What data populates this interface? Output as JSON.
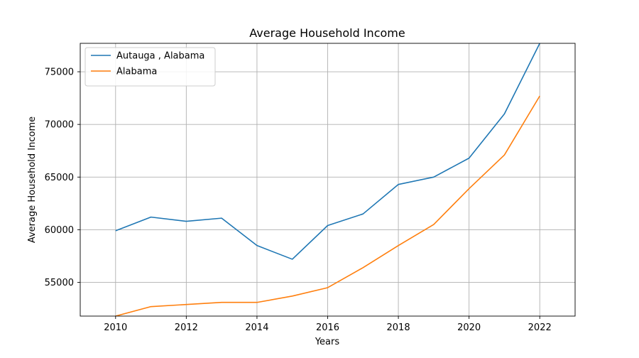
{
  "chart_data": {
    "type": "line",
    "title": "Average Household Income",
    "xlabel": "Years",
    "ylabel": "Average Household Income",
    "x": [
      2010,
      2011,
      2012,
      2013,
      2014,
      2015,
      2016,
      2017,
      2018,
      2019,
      2020,
      2021,
      2022
    ],
    "series": [
      {
        "name": "Autauga , Alabama",
        "color": "#1f77b4",
        "values": [
          59900,
          61200,
          60800,
          61100,
          58500,
          57200,
          60400,
          61500,
          64300,
          65000,
          66800,
          71000,
          77700
        ]
      },
      {
        "name": "Alabama",
        "color": "#ff7f0e",
        "values": [
          51800,
          52700,
          52900,
          53100,
          53100,
          53700,
          54500,
          56400,
          58500,
          60500,
          63900,
          67100,
          72700
        ]
      }
    ],
    "xlim": [
      2009,
      2023
    ],
    "ylim": [
      51800,
      77700
    ],
    "xticks": [
      2010,
      2012,
      2014,
      2016,
      2018,
      2020,
      2022
    ],
    "yticks": [
      55000,
      60000,
      65000,
      70000,
      75000
    ],
    "grid": true,
    "legend_position": "top-left"
  }
}
